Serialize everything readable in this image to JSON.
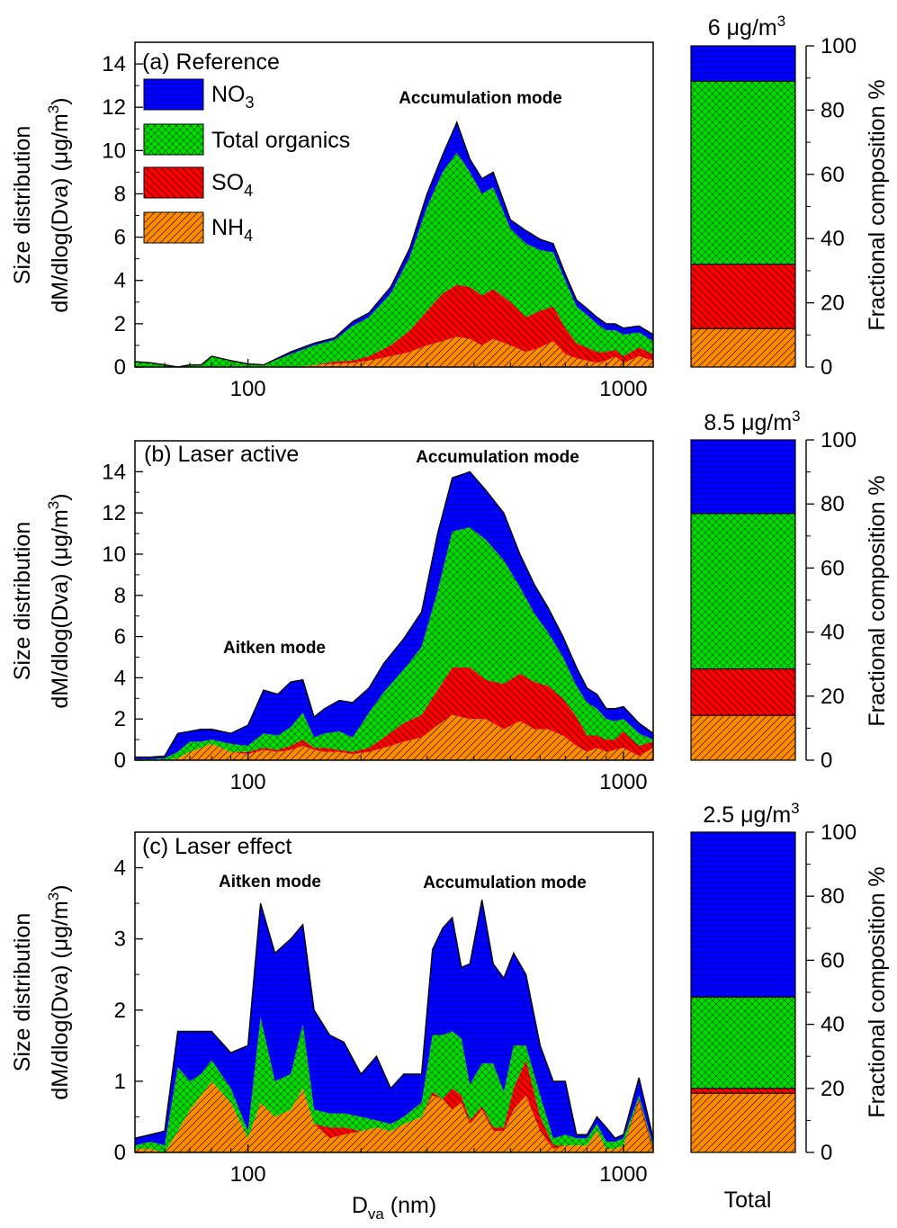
{
  "colors": {
    "NO3": "#0000ff",
    "Org": "#00dd00",
    "SO4": "#ff0000",
    "NH4": "#ff8c00"
  },
  "legend": [
    {
      "key": "NO3",
      "label": "NO",
      "sub": "3"
    },
    {
      "key": "Org",
      "label": "Total organics",
      "sub": ""
    },
    {
      "key": "SO4",
      "label": "SO",
      "sub": "4"
    },
    {
      "key": "NH4",
      "label": "NH",
      "sub": "4"
    }
  ],
  "axes": {
    "xlabel_main": "D",
    "xlabel_sub": "va",
    "xlabel_unit": " (nm)",
    "ylabel_line1": "Size distribution",
    "ylabel_line2": "dM/dlog(Dva) (μg/m",
    "ylabel_sup": "3",
    "ylabel_close": ")",
    "right_ylabel": "Fractional composition %",
    "bar_xlabel": "Total"
  },
  "chart_data": [
    {
      "type": "area",
      "title": "(a) Reference",
      "xscale": "log",
      "xlim": [
        50,
        1200
      ],
      "ylim": [
        0,
        15
      ],
      "yticks": [
        0,
        2,
        4,
        6,
        8,
        10,
        12,
        14
      ],
      "xticks": [
        100,
        1000
      ],
      "annotations": [
        "Accumulation mode"
      ],
      "x": [
        50,
        55,
        60,
        65,
        70,
        75,
        80,
        90,
        100,
        110,
        130,
        150,
        170,
        190,
        210,
        240,
        270,
        300,
        330,
        360,
        390,
        420,
        450,
        500,
        550,
        600,
        650,
        700,
        750,
        800,
        850,
        900,
        950,
        1000,
        1100,
        1200
      ],
      "series": [
        {
          "key": "NH4",
          "name": "NH4",
          "values": [
            0,
            0,
            0,
            0,
            0,
            0,
            0,
            0,
            0,
            0,
            0,
            0.1,
            0.15,
            0.2,
            0.3,
            0.5,
            0.7,
            1.0,
            1.2,
            1.4,
            1.3,
            1.0,
            1.3,
            1.0,
            0.7,
            0.9,
            1.2,
            0.6,
            0.4,
            0.3,
            0.2,
            0.3,
            0.5,
            0.2,
            0.5,
            0.3
          ]
        },
        {
          "key": "SO4",
          "name": "SO4",
          "values": [
            0,
            0,
            0,
            0,
            0,
            0,
            0,
            0,
            0,
            0,
            0,
            0,
            0.1,
            0.1,
            0.2,
            0.5,
            1.0,
            1.6,
            2.2,
            2.4,
            2.4,
            2.3,
            2.3,
            2.0,
            1.6,
            1.7,
            1.6,
            1.2,
            0.7,
            0.6,
            0.5,
            0.4,
            0.3,
            0.3,
            0.4,
            0.3
          ]
        },
        {
          "key": "Org",
          "name": "Total organics",
          "values": [
            0.25,
            0.2,
            0.1,
            0,
            0.1,
            0.1,
            0.5,
            0.3,
            0.15,
            0.1,
            0.6,
            0.9,
            1.0,
            1.6,
            1.8,
            2.4,
            3.4,
            4.8,
            5.6,
            6.1,
            5.3,
            4.7,
            4.7,
            3.4,
            3.4,
            2.8,
            2.5,
            2.2,
            1.7,
            1.5,
            1.3,
            1.0,
            0.9,
            1.0,
            0.7,
            0.6
          ]
        },
        {
          "key": "NO3",
          "name": "NO3",
          "values": [
            0,
            0,
            0,
            0,
            0,
            0,
            0,
            0,
            0,
            0,
            0.1,
            0.1,
            0.1,
            0.2,
            0.2,
            0.3,
            0.4,
            0.6,
            0.8,
            1.4,
            0.6,
            0.7,
            0.7,
            0.4,
            0.6,
            0.5,
            0.4,
            0.3,
            0.3,
            0.3,
            0.3,
            0.3,
            0.3,
            0.3,
            0.3,
            0.3
          ]
        }
      ]
    },
    {
      "type": "area",
      "title": "(b) Laser active",
      "xscale": "log",
      "xlim": [
        50,
        1200
      ],
      "ylim": [
        0,
        15.5
      ],
      "yticks": [
        0,
        2,
        4,
        6,
        8,
        10,
        12,
        14
      ],
      "xticks": [
        100,
        1000
      ],
      "annotations": [
        "Aitken mode",
        "Accumulation mode"
      ],
      "x": [
        50,
        55,
        60,
        65,
        70,
        75,
        80,
        90,
        100,
        110,
        120,
        130,
        140,
        150,
        160,
        175,
        190,
        210,
        230,
        260,
        290,
        320,
        350,
        390,
        430,
        480,
        530,
        580,
        630,
        690,
        750,
        800,
        850,
        900,
        950,
        1000,
        1100,
        1200
      ],
      "series": [
        {
          "key": "NH4",
          "name": "NH4",
          "values": [
            0,
            0,
            0,
            0.1,
            0.4,
            0.6,
            0.8,
            0.4,
            0.3,
            0.5,
            0.4,
            0.5,
            0.7,
            0.5,
            0.4,
            0.4,
            0.3,
            0.4,
            0.6,
            0.9,
            1.1,
            1.7,
            2.2,
            2.0,
            2.0,
            1.5,
            1.9,
            1.5,
            1.5,
            1.2,
            0.7,
            0.4,
            0.6,
            0.4,
            0.5,
            0.6,
            0.2,
            0.6
          ]
        },
        {
          "key": "SO4",
          "name": "SO4",
          "values": [
            0,
            0,
            0,
            0,
            0,
            0,
            0,
            0,
            0.1,
            0.1,
            0.1,
            0.2,
            0.3,
            0.1,
            0.2,
            0.1,
            0.1,
            0.2,
            0.5,
            0.9,
            1.1,
            1.7,
            2.3,
            2.5,
            1.9,
            2.2,
            2.3,
            2.3,
            2.1,
            1.8,
            1.4,
            0.8,
            0.6,
            0.6,
            0.5,
            0.8,
            0.5,
            0.3
          ]
        },
        {
          "key": "Org",
          "name": "Total organics",
          "values": [
            0.05,
            0.05,
            0.1,
            0.3,
            0.5,
            0.3,
            0.2,
            0.4,
            0.3,
            0.7,
            0.7,
            0.9,
            1.3,
            0.5,
            0.7,
            0.9,
            0.7,
            1.7,
            2.2,
            2.6,
            3.3,
            4.8,
            6.6,
            6.8,
            6.8,
            6.0,
            4.2,
            3.3,
            2.6,
            2.0,
            1.5,
            1.6,
            1.3,
            1.0,
            0.9,
            0.6,
            0.6,
            0.1
          ]
        },
        {
          "key": "NO3",
          "name": "NO3",
          "values": [
            0.1,
            0.1,
            0.1,
            0.9,
            0.5,
            0.6,
            0.5,
            0.5,
            1.0,
            2.1,
            2.0,
            2.2,
            1.6,
            1.0,
            1.2,
            1.5,
            1.7,
            1.2,
            1.4,
            1.5,
            1.7,
            2.8,
            2.6,
            2.7,
            2.4,
            2.3,
            1.6,
            1.4,
            1.2,
            1.0,
            0.9,
            0.7,
            0.7,
            0.5,
            0.6,
            0.6,
            0.5,
            0.3
          ]
        }
      ]
    },
    {
      "type": "area",
      "title": "(c) Laser effect",
      "xscale": "log",
      "xlim": [
        50,
        1200
      ],
      "ylim": [
        0,
        4.5
      ],
      "yticks": [
        0,
        1,
        2,
        3,
        4
      ],
      "xticks": [
        100,
        1000
      ],
      "annotations": [
        "Aitken mode",
        "Accumulation mode"
      ],
      "x": [
        50,
        55,
        60,
        65,
        70,
        75,
        80,
        90,
        100,
        108,
        118,
        130,
        140,
        150,
        165,
        180,
        200,
        220,
        240,
        260,
        290,
        310,
        330,
        350,
        370,
        390,
        420,
        450,
        480,
        510,
        550,
        600,
        650,
        700,
        750,
        800,
        850,
        900,
        950,
        1000,
        1100,
        1200
      ],
      "series": [
        {
          "key": "NH4",
          "name": "NH4",
          "values": [
            0.05,
            0.05,
            0,
            0.3,
            0.6,
            0.8,
            1.0,
            0.7,
            0.2,
            0.7,
            0.5,
            0.6,
            0.9,
            0.4,
            0.2,
            0.25,
            0.3,
            0.35,
            0.3,
            0.4,
            0.5,
            0.8,
            0.75,
            0.6,
            0.7,
            0.4,
            0.6,
            0.3,
            0.3,
            0.6,
            0.8,
            0.3,
            0.05,
            0.1,
            0.1,
            0.1,
            0.3,
            0.05,
            0.05,
            0.1,
            0.7,
            0.0
          ]
        },
        {
          "key": "SO4",
          "name": "SO4",
          "values": [
            0,
            0,
            0,
            0,
            0,
            0,
            0,
            0,
            0,
            0,
            0,
            0,
            0,
            0,
            0.15,
            0.1,
            0,
            0,
            0,
            0,
            0,
            0.05,
            0,
            0.3,
            0.1,
            0.05,
            0.05,
            0.05,
            0.05,
            0.3,
            0.5,
            0.2,
            0.05,
            0,
            0,
            0,
            0,
            0,
            0,
            0,
            0.05,
            0.05
          ]
        },
        {
          "key": "Org",
          "name": "Total organics",
          "values": [
            0.05,
            0.1,
            0.1,
            0.9,
            0.4,
            0.3,
            0.3,
            0.2,
            0.1,
            1.2,
            0.5,
            0.5,
            0.9,
            0.2,
            0.2,
            0.2,
            0.2,
            0.1,
            0.1,
            0.1,
            0.2,
            0.8,
            0.9,
            0.8,
            0.8,
            0.5,
            0.6,
            0.9,
            0.5,
            0.6,
            0.2,
            0.3,
            0.1,
            0.15,
            0.1,
            0.1,
            0.1,
            0.1,
            0.1,
            0.1,
            0.05,
            0.05
          ]
        },
        {
          "key": "NO3",
          "name": "NO3",
          "values": [
            0.1,
            0.1,
            0.2,
            0.5,
            0.7,
            0.6,
            0.4,
            0.5,
            1.2,
            1.6,
            1.8,
            1.9,
            1.4,
            1.4,
            1.1,
            1.0,
            0.6,
            0.9,
            0.5,
            0.6,
            0.4,
            1.2,
            1.5,
            1.6,
            1.0,
            1.7,
            2.3,
            1.4,
            1.6,
            1.3,
            1.0,
            0.7,
            0.8,
            0.75,
            0.05,
            0.05,
            0.1,
            0.2,
            0.05,
            0.05,
            0.25,
            0.1
          ]
        }
      ]
    },
    {
      "type": "bar",
      "title": "6 μg/m",
      "title_sup": "3",
      "xlabel": "",
      "ylabel": "Fractional composition %",
      "ylim": [
        0,
        100
      ],
      "yticks": [
        0,
        20,
        40,
        60,
        80,
        100
      ],
      "stack": [
        {
          "key": "NH4",
          "value": 12
        },
        {
          "key": "SO4",
          "value": 20
        },
        {
          "key": "Org",
          "value": 57
        },
        {
          "key": "NO3",
          "value": 11
        }
      ]
    },
    {
      "type": "bar",
      "title": "8.5 μg/m",
      "title_sup": "3",
      "xlabel": "",
      "ylabel": "Fractional composition %",
      "ylim": [
        0,
        100
      ],
      "yticks": [
        0,
        20,
        40,
        60,
        80,
        100
      ],
      "stack": [
        {
          "key": "NH4",
          "value": 14
        },
        {
          "key": "SO4",
          "value": 14.5
        },
        {
          "key": "Org",
          "value": 48.5
        },
        {
          "key": "NO3",
          "value": 23
        }
      ]
    },
    {
      "type": "bar",
      "title": "2.5 μg/m",
      "title_sup": "3",
      "xlabel": "Total",
      "ylabel": "Fractional composition %",
      "ylim": [
        0,
        100
      ],
      "yticks": [
        0,
        20,
        40,
        60,
        80,
        100
      ],
      "stack": [
        {
          "key": "NH4",
          "value": 18.5
        },
        {
          "key": "SO4",
          "value": 1.5
        },
        {
          "key": "Org",
          "value": 28.5
        },
        {
          "key": "NO3",
          "value": 51.5
        }
      ]
    }
  ]
}
